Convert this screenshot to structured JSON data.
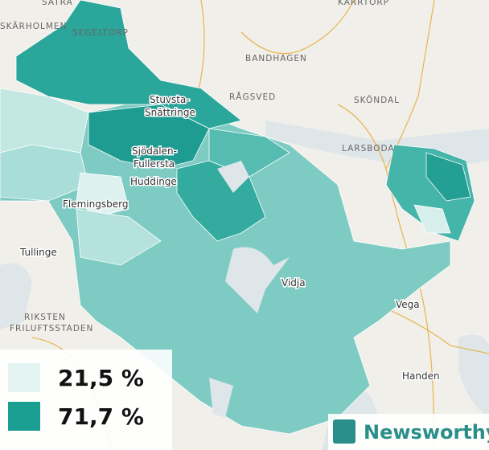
{
  "map": {
    "areas": [
      "SÄTRA",
      "SKÄRHOLMEN",
      "SEGELTORP",
      "BANDHAGEN",
      "RÅGSVED",
      "SKÖNDAL",
      "LARSBODA",
      "RIKSTEN",
      "FRILUFTSSTADEN",
      "KARRTORP"
    ],
    "places": [
      [
        "Stuvsta-",
        "Snättringe"
      ],
      [
        "Sjödalen-",
        "Fullersta"
      ],
      [
        "Huddinge"
      ],
      [
        "Flemingsberg"
      ],
      [
        "Tullinge"
      ],
      [
        "Vidja"
      ],
      [
        "Vega"
      ],
      [
        "Handen"
      ]
    ],
    "legend": [
      "21,5 %",
      "71,7 %"
    ],
    "logo": "Newsworthy"
  }
}
